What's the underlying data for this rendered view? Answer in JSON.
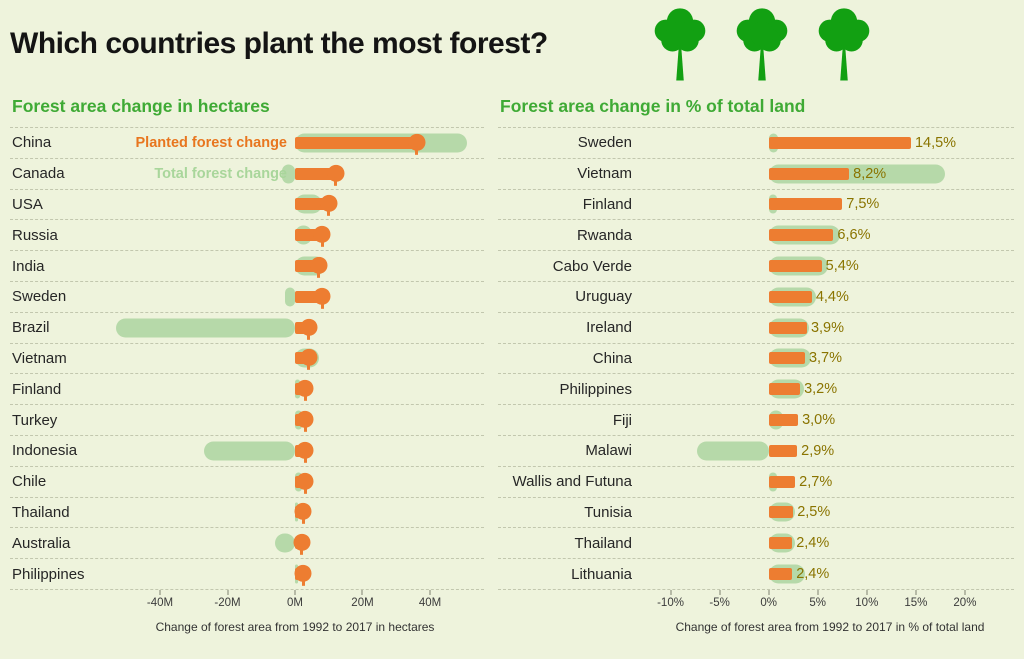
{
  "page": {
    "title": "Which countries plant the most forest?",
    "header_icons": [
      "tree-icon",
      "tree-icon",
      "tree-icon"
    ],
    "colors": {
      "background": "#eef3dc",
      "planted_orange": "#ed7d31",
      "total_green": "#b6d9a9",
      "heading_green": "#3faa35",
      "value_olive": "#8a7400",
      "tree_green": "#12a012",
      "dash": "#c2c7ae"
    }
  },
  "chart_data": [
    {
      "type": "bar",
      "orientation": "horizontal",
      "title": "Forest area change in hectares",
      "caption": "Change of forest area from 1992 to 2017 in hectares",
      "unit": "million hectares",
      "xlim": [
        -56,
        56
      ],
      "grid": false,
      "marker": "tree",
      "x_ticks": [
        {
          "v": -40,
          "label": "-40M"
        },
        {
          "v": -20,
          "label": "-20M"
        },
        {
          "v": 0,
          "label": "0M"
        },
        {
          "v": 20,
          "label": "20M"
        },
        {
          "v": 40,
          "label": "40M"
        }
      ],
      "legend": [
        {
          "series": "planted",
          "text": "Planted forest change",
          "row": 0
        },
        {
          "series": "total",
          "text": "Total forest change",
          "row": 1
        }
      ],
      "series_names": {
        "planted": "Planted forest change",
        "total": "Total forest change"
      },
      "rows": [
        {
          "country": "China",
          "planted": 36,
          "total": 51
        },
        {
          "country": "Canada",
          "planted": 12,
          "total": -4
        },
        {
          "country": "USA",
          "planted": 10,
          "total": 8
        },
        {
          "country": "Russia",
          "planted": 8,
          "total": 5
        },
        {
          "country": "India",
          "planted": 7,
          "total": 9
        },
        {
          "country": "Sweden",
          "planted": 8,
          "total": -3
        },
        {
          "country": "Brazil",
          "planted": 4,
          "total": -53
        },
        {
          "country": "Vietnam",
          "planted": 4,
          "total": 7
        },
        {
          "country": "Finland",
          "planted": 3,
          "total": 1.5
        },
        {
          "country": "Turkey",
          "planted": 3,
          "total": 2
        },
        {
          "country": "Indonesia",
          "planted": 3,
          "total": -27
        },
        {
          "country": "Chile",
          "planted": 3,
          "total": 2
        },
        {
          "country": "Thailand",
          "planted": 2.5,
          "total": 1
        },
        {
          "country": "Australia",
          "planted": 2,
          "total": -6
        },
        {
          "country": "Philippines",
          "planted": 2.5,
          "total": 0.5
        }
      ]
    },
    {
      "type": "bar",
      "orientation": "horizontal",
      "title": "Forest area change in % of total land",
      "caption": "Change of forest area from 1992 to 2017 in % of total land",
      "unit": "% of total land",
      "xlim": [
        -12.5,
        25
      ],
      "grid": false,
      "x_ticks": [
        {
          "v": -10,
          "label": "-10%"
        },
        {
          "v": -5,
          "label": "-5%"
        },
        {
          "v": 0,
          "label": "0%"
        },
        {
          "v": 5,
          "label": "5%"
        },
        {
          "v": 10,
          "label": "10%"
        },
        {
          "v": 15,
          "label": "15%"
        },
        {
          "v": 20,
          "label": "20%"
        }
      ],
      "series_names": {
        "planted": "Planted forest change",
        "total": "Total forest change"
      },
      "rows": [
        {
          "country": "Sweden",
          "planted": 14.5,
          "total": 1.0,
          "label": "14,5%"
        },
        {
          "country": "Vietnam",
          "planted": 8.2,
          "total": 18.0,
          "label": "8,2%"
        },
        {
          "country": "Finland",
          "planted": 7.5,
          "total": 0.8,
          "label": "7,5%"
        },
        {
          "country": "Rwanda",
          "planted": 6.6,
          "total": 7.3,
          "label": "6,6%"
        },
        {
          "country": "Cabo Verde",
          "planted": 5.4,
          "total": 6.0,
          "label": "5,4%"
        },
        {
          "country": "Uruguay",
          "planted": 4.4,
          "total": 4.8,
          "label": "4,4%"
        },
        {
          "country": "Ireland",
          "planted": 3.9,
          "total": 4.1,
          "label": "3,9%"
        },
        {
          "country": "China",
          "planted": 3.7,
          "total": 4.3,
          "label": "3,7%"
        },
        {
          "country": "Philippines",
          "planted": 3.2,
          "total": 3.6,
          "label": "3,2%"
        },
        {
          "country": "Fiji",
          "planted": 3.0,
          "total": 1.5,
          "label": "3,0%"
        },
        {
          "country": "Malawi",
          "planted": 2.9,
          "total": -7.3,
          "label": "2,9%"
        },
        {
          "country": "Wallis and Futuna",
          "planted": 2.7,
          "total": 0.8,
          "label": "2,7%"
        },
        {
          "country": "Tunisia",
          "planted": 2.5,
          "total": 2.7,
          "label": "2,5%"
        },
        {
          "country": "Thailand",
          "planted": 2.4,
          "total": 2.7,
          "label": "2,4%"
        },
        {
          "country": "Lithuania",
          "planted": 2.4,
          "total": 3.7,
          "label": "2,4%"
        }
      ]
    }
  ]
}
